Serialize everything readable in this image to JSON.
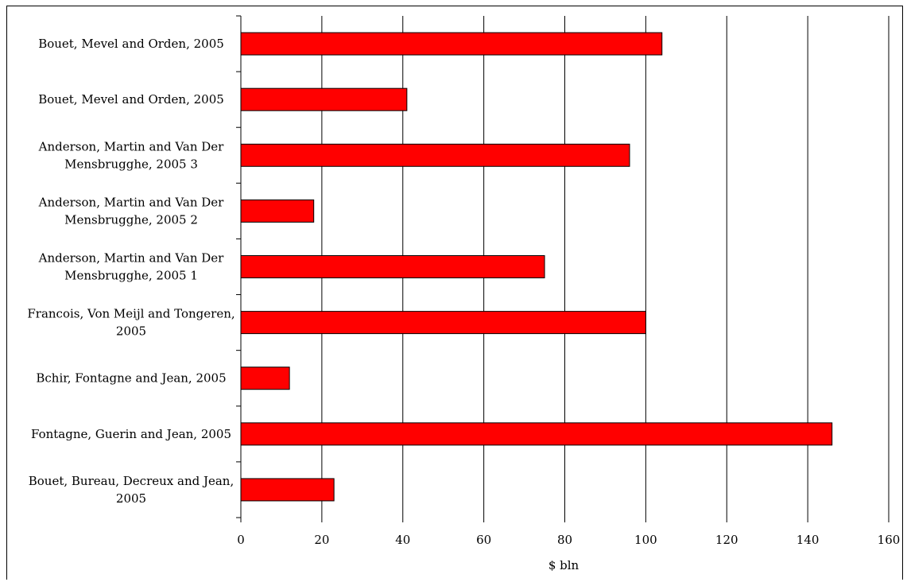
{
  "chart_data": {
    "type": "bar",
    "orientation": "horizontal",
    "title": "",
    "xlabel": "$ bln",
    "ylabel": "",
    "xlim": [
      0,
      160
    ],
    "xticks": [
      0,
      20,
      40,
      60,
      80,
      100,
      120,
      140,
      160
    ],
    "grid": true,
    "bar_color": "#ff0000",
    "bar_edge_color": "#000000",
    "categories": [
      [
        "Bouet, Mevel and Orden, 2005"
      ],
      [
        "Bouet, Mevel and Orden, 2005"
      ],
      [
        "Anderson, Martin and Van Der",
        "Mensbrugghe, 2005 3"
      ],
      [
        "Anderson, Martin and Van Der",
        "Mensbrugghe, 2005 2"
      ],
      [
        "Anderson, Martin and Van Der",
        "Mensbrugghe, 2005 1"
      ],
      [
        "Francois, Von Meijl and Tongeren,",
        "2005"
      ],
      [
        "Bchir, Fontagne and Jean, 2005"
      ],
      [
        "Fontagne, Guerin and Jean, 2005"
      ],
      [
        "Bouet, Bureau, Decreux and Jean,",
        "2005"
      ]
    ],
    "values": [
      104,
      41,
      96,
      18,
      75,
      100,
      12,
      146,
      23
    ]
  }
}
